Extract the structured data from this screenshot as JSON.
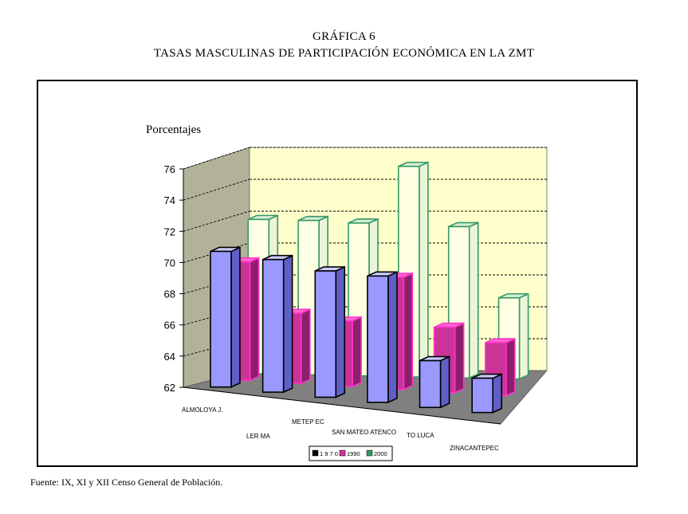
{
  "header": {
    "line1": "GRÁFICA 6",
    "line2": "TASAS MASCULINAS DE PARTICIPACIÓN ECONÓMICA EN LA ZMT"
  },
  "footer": {
    "source": "Fuente: IX, XI y XII Censo General de Población."
  },
  "chart_data": {
    "type": "bar",
    "ylabel": "Porcentajes",
    "ylim": [
      62,
      76
    ],
    "yticks": [
      "62",
      "64",
      "66",
      "68",
      "70",
      "72",
      "74",
      "76"
    ],
    "categories": [
      "ALMOLOYA J.",
      "LER MA",
      "METEP EC",
      "SAN MATEO ATENCO",
      "TO LUCA",
      "ZINACANTEPEC"
    ],
    "series": [
      {
        "name": "1970",
        "values": [
          70.7,
          70.5,
          70.1,
          70.1,
          65.0,
          64.2
        ]
      },
      {
        "name": "1990",
        "values": [
          69.6,
          66.5,
          66.2,
          69.2,
          66.2,
          65.4
        ]
      },
      {
        "name": "2000",
        "values": [
          71.9,
          71.9,
          71.8,
          75.5,
          71.7,
          67.2
        ]
      }
    ],
    "legend_labels": [
      "1 9 7 0",
      "1990",
      "2000"
    ],
    "legend_position": "bottom",
    "grid": true,
    "colors": {
      "s1970": "#9999ff",
      "s1970_dark": "#5f5fc7",
      "s1990": "#cc3399",
      "s1990_dark": "#8c1f6a",
      "s2000": "#ffffe4",
      "s2000_edge": "#339966",
      "back_wall": "#ffffcc",
      "side_wall": "#b2b299",
      "floor": "#808080"
    }
  }
}
